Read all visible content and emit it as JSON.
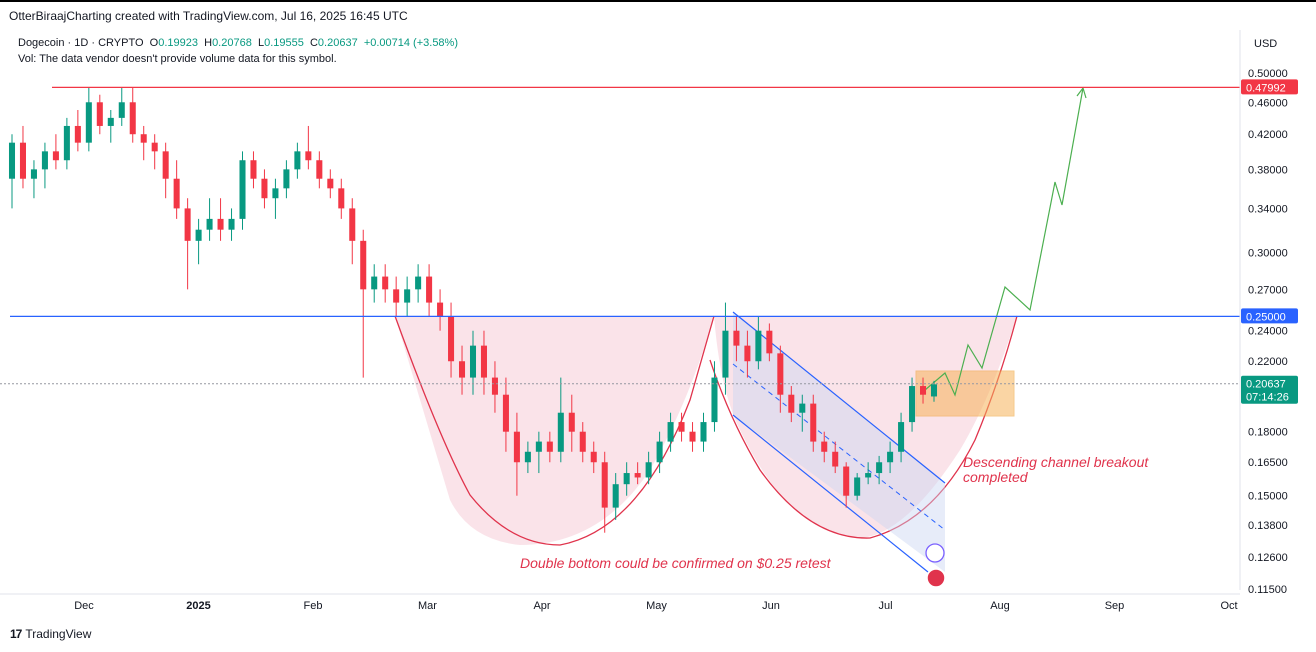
{
  "header": {
    "credit": "OtterBiraajCharting created with TradingView.com, Jul 16, 2025 16:45 UTC",
    "symbol": "Dogecoin · 1D · CRYPTO",
    "open_label": "O",
    "open": "0.19923",
    "high_label": "H",
    "high": "0.20768",
    "low_label": "L",
    "low": "0.19555",
    "close_label": "C",
    "close": "0.20637",
    "change": "+0.00714 (+3.58%)",
    "vol_note": "Vol: The data vendor doesn't provide volume data for this symbol.",
    "currency": "USD"
  },
  "footer": {
    "brand_mark": "17",
    "brand": "TradingView"
  },
  "chart_data": {
    "type": "candlestick",
    "price_axis": {
      "scale": "log",
      "ticks": [
        "0.50000",
        "0.46000",
        "0.42000",
        "0.38000",
        "0.34000",
        "0.30000",
        "0.27000",
        "0.24000",
        "0.22000",
        "0.18000",
        "0.16500",
        "0.15000",
        "0.13800",
        "0.12600",
        "0.11500"
      ]
    },
    "time_axis": {
      "ticks": [
        "Dec",
        "2025",
        "Feb",
        "Mar",
        "Apr",
        "May",
        "Jun",
        "Jul",
        "Aug",
        "Sep",
        "Oct"
      ]
    },
    "price_labels": [
      {
        "value": "0.47992",
        "color": "#f23645"
      },
      {
        "value": "0.25000",
        "color": "#2962ff"
      },
      {
        "value": "0.20637",
        "sub": "07:14:26",
        "color": "#089981"
      }
    ],
    "horizontal_lines": [
      {
        "price": 0.47992,
        "color": "#f23645"
      },
      {
        "price": 0.25,
        "color": "#2962ff"
      },
      {
        "price": 0.20637,
        "color": "#9598a1",
        "style": "dotted"
      }
    ],
    "annotations": [
      "Double bottom could be confirmed on $0.25 retest",
      "Descending channel breakout",
      "completed"
    ],
    "candles": [
      [
        0.37,
        0.42,
        0.34,
        0.41
      ],
      [
        0.41,
        0.43,
        0.36,
        0.37
      ],
      [
        0.37,
        0.39,
        0.35,
        0.38
      ],
      [
        0.38,
        0.41,
        0.36,
        0.4
      ],
      [
        0.4,
        0.42,
        0.38,
        0.39
      ],
      [
        0.39,
        0.44,
        0.38,
        0.43
      ],
      [
        0.43,
        0.45,
        0.4,
        0.41
      ],
      [
        0.41,
        0.48,
        0.4,
        0.46
      ],
      [
        0.46,
        0.47,
        0.42,
        0.43
      ],
      [
        0.43,
        0.45,
        0.41,
        0.44
      ],
      [
        0.44,
        0.48,
        0.43,
        0.46
      ],
      [
        0.46,
        0.48,
        0.41,
        0.42
      ],
      [
        0.42,
        0.43,
        0.39,
        0.41
      ],
      [
        0.41,
        0.42,
        0.38,
        0.4
      ],
      [
        0.4,
        0.41,
        0.35,
        0.37
      ],
      [
        0.37,
        0.39,
        0.33,
        0.34
      ],
      [
        0.34,
        0.35,
        0.27,
        0.31
      ],
      [
        0.31,
        0.33,
        0.29,
        0.32
      ],
      [
        0.32,
        0.35,
        0.31,
        0.33
      ],
      [
        0.33,
        0.35,
        0.31,
        0.32
      ],
      [
        0.32,
        0.34,
        0.31,
        0.33
      ],
      [
        0.33,
        0.4,
        0.32,
        0.39
      ],
      [
        0.39,
        0.4,
        0.36,
        0.37
      ],
      [
        0.37,
        0.38,
        0.34,
        0.35
      ],
      [
        0.35,
        0.37,
        0.33,
        0.36
      ],
      [
        0.36,
        0.39,
        0.35,
        0.38
      ],
      [
        0.38,
        0.41,
        0.37,
        0.4
      ],
      [
        0.4,
        0.43,
        0.38,
        0.39
      ],
      [
        0.39,
        0.4,
        0.36,
        0.37
      ],
      [
        0.37,
        0.38,
        0.35,
        0.36
      ],
      [
        0.36,
        0.37,
        0.33,
        0.34
      ],
      [
        0.34,
        0.35,
        0.29,
        0.31
      ],
      [
        0.31,
        0.32,
        0.21,
        0.27
      ],
      [
        0.27,
        0.29,
        0.26,
        0.28
      ],
      [
        0.28,
        0.29,
        0.26,
        0.27
      ],
      [
        0.27,
        0.28,
        0.25,
        0.26
      ],
      [
        0.26,
        0.28,
        0.25,
        0.27
      ],
      [
        0.27,
        0.29,
        0.26,
        0.28
      ],
      [
        0.28,
        0.29,
        0.25,
        0.26
      ],
      [
        0.26,
        0.27,
        0.24,
        0.25
      ],
      [
        0.25,
        0.26,
        0.21,
        0.22
      ],
      [
        0.22,
        0.23,
        0.2,
        0.21
      ],
      [
        0.21,
        0.24,
        0.2,
        0.23
      ],
      [
        0.23,
        0.24,
        0.2,
        0.21
      ],
      [
        0.21,
        0.22,
        0.19,
        0.2
      ],
      [
        0.2,
        0.21,
        0.17,
        0.18
      ],
      [
        0.18,
        0.19,
        0.15,
        0.165
      ],
      [
        0.165,
        0.175,
        0.16,
        0.17
      ],
      [
        0.17,
        0.18,
        0.16,
        0.175
      ],
      [
        0.175,
        0.18,
        0.165,
        0.17
      ],
      [
        0.17,
        0.21,
        0.165,
        0.19
      ],
      [
        0.19,
        0.2,
        0.17,
        0.18
      ],
      [
        0.18,
        0.185,
        0.165,
        0.17
      ],
      [
        0.17,
        0.175,
        0.16,
        0.165
      ],
      [
        0.165,
        0.17,
        0.135,
        0.145
      ],
      [
        0.145,
        0.16,
        0.14,
        0.155
      ],
      [
        0.155,
        0.165,
        0.15,
        0.16
      ],
      [
        0.16,
        0.165,
        0.155,
        0.158
      ],
      [
        0.158,
        0.17,
        0.155,
        0.165
      ],
      [
        0.165,
        0.18,
        0.16,
        0.175
      ],
      [
        0.175,
        0.19,
        0.17,
        0.185
      ],
      [
        0.185,
        0.19,
        0.175,
        0.18
      ],
      [
        0.18,
        0.185,
        0.17,
        0.175
      ],
      [
        0.175,
        0.19,
        0.17,
        0.185
      ],
      [
        0.185,
        0.22,
        0.18,
        0.21
      ],
      [
        0.21,
        0.26,
        0.2,
        0.24
      ],
      [
        0.24,
        0.25,
        0.22,
        0.23
      ],
      [
        0.23,
        0.24,
        0.21,
        0.22
      ],
      [
        0.22,
        0.25,
        0.215,
        0.24
      ],
      [
        0.24,
        0.245,
        0.22,
        0.225
      ],
      [
        0.225,
        0.23,
        0.19,
        0.2
      ],
      [
        0.2,
        0.205,
        0.185,
        0.19
      ],
      [
        0.19,
        0.2,
        0.18,
        0.195
      ],
      [
        0.195,
        0.2,
        0.17,
        0.175
      ],
      [
        0.175,
        0.18,
        0.165,
        0.17
      ],
      [
        0.17,
        0.175,
        0.16,
        0.163
      ],
      [
        0.163,
        0.165,
        0.145,
        0.15
      ],
      [
        0.15,
        0.16,
        0.148,
        0.158
      ],
      [
        0.158,
        0.165,
        0.155,
        0.16
      ],
      [
        0.16,
        0.168,
        0.155,
        0.165
      ],
      [
        0.165,
        0.175,
        0.16,
        0.17
      ],
      [
        0.17,
        0.19,
        0.165,
        0.185
      ],
      [
        0.185,
        0.21,
        0.18,
        0.205
      ],
      [
        0.205,
        0.21,
        0.195,
        0.2
      ],
      [
        0.199,
        0.208,
        0.196,
        0.206
      ]
    ]
  }
}
